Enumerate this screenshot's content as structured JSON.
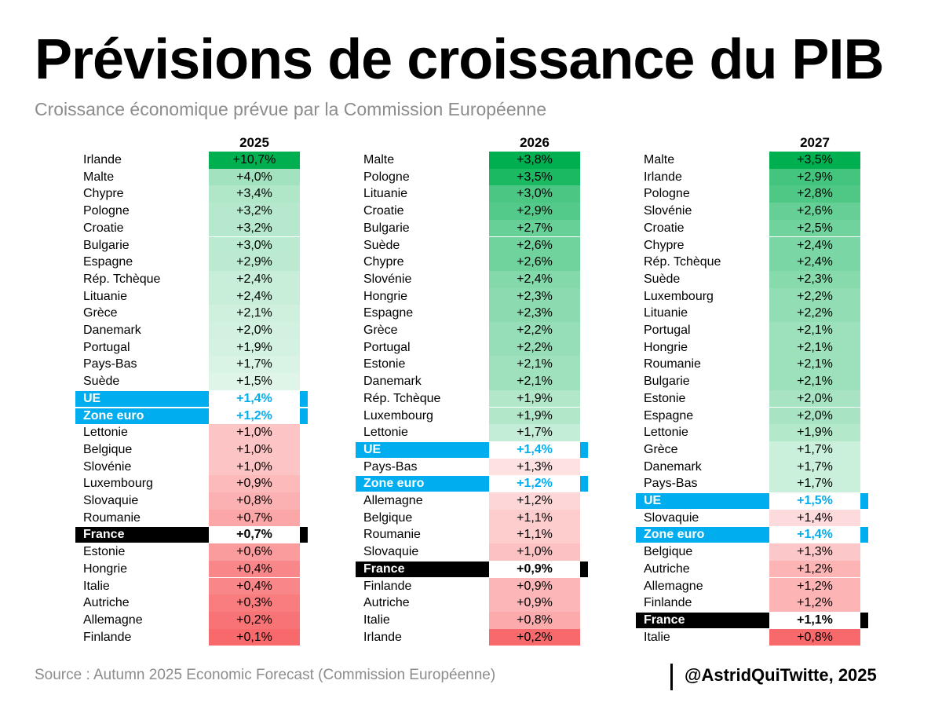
{
  "title": "Prévisions de croissance du PIB",
  "subtitle": "Croissance économique prévue par la Commission Européenne",
  "source": "Source : Autumn 2025 Economic Forecast (Commission Européenne)",
  "credit": "@AstridQuiTwitte, 2025",
  "colors": {
    "positive_max": "#00b050",
    "neutral": "#ffffff",
    "negative_max": "#f8696b",
    "ue_highlight": "#00aeef",
    "france_highlight": "#000000"
  },
  "chart_data": [
    {
      "type": "table",
      "year": "2025",
      "scale": [
        0.1,
        1.4,
        10.7
      ],
      "rows": [
        {
          "country": "Irlande",
          "label": "+10,7%",
          "value": 10.7
        },
        {
          "country": "Malte",
          "label": "+4,0%",
          "value": 4.0
        },
        {
          "country": "Chypre",
          "label": "+3,4%",
          "value": 3.4
        },
        {
          "country": "Pologne",
          "label": "+3,2%",
          "value": 3.2
        },
        {
          "country": "Croatie",
          "label": "+3,2%",
          "value": 3.2
        },
        {
          "country": "Bulgarie",
          "label": "+3,0%",
          "value": 3.0
        },
        {
          "country": "Espagne",
          "label": "+2,9%",
          "value": 2.9
        },
        {
          "country": "Rép. Tchèque",
          "label": "+2,4%",
          "value": 2.4
        },
        {
          "country": "Lituanie",
          "label": "+2,4%",
          "value": 2.4
        },
        {
          "country": "Grèce",
          "label": "+2,1%",
          "value": 2.1
        },
        {
          "country": "Danemark",
          "label": "+2,0%",
          "value": 2.0
        },
        {
          "country": "Portugal",
          "label": "+1,9%",
          "value": 1.9
        },
        {
          "country": "Pays-Bas",
          "label": "+1,7%",
          "value": 1.7
        },
        {
          "country": "Suède",
          "label": "+1,5%",
          "value": 1.5
        },
        {
          "country": "UE",
          "label": "+1,4%",
          "value": 1.4,
          "highlight": "blue"
        },
        {
          "country": "Zone euro",
          "label": "+1,2%",
          "value": 1.2,
          "highlight": "blue"
        },
        {
          "country": "Lettonie",
          "label": "+1,0%",
          "value": 1.0
        },
        {
          "country": "Belgique",
          "label": "+1,0%",
          "value": 1.0
        },
        {
          "country": "Slovénie",
          "label": "+1,0%",
          "value": 1.0
        },
        {
          "country": "Luxembourg",
          "label": "+0,9%",
          "value": 0.9
        },
        {
          "country": "Slovaquie",
          "label": "+0,8%",
          "value": 0.8
        },
        {
          "country": "Roumanie",
          "label": "+0,7%",
          "value": 0.7
        },
        {
          "country": "France",
          "label": "+0,7%",
          "value": 0.7,
          "highlight": "black"
        },
        {
          "country": "Estonie",
          "label": "+0,6%",
          "value": 0.6
        },
        {
          "country": "Hongrie",
          "label": "+0,4%",
          "value": 0.4
        },
        {
          "country": "Italie",
          "label": "+0,4%",
          "value": 0.4
        },
        {
          "country": "Autriche",
          "label": "+0,3%",
          "value": 0.3
        },
        {
          "country": "Allemagne",
          "label": "+0,2%",
          "value": 0.2
        },
        {
          "country": "Finlande",
          "label": "+0,1%",
          "value": 0.1
        }
      ]
    },
    {
      "type": "table",
      "year": "2026",
      "scale": [
        0.2,
        1.4,
        3.8
      ],
      "rows": [
        {
          "country": "Malte",
          "label": "+3,8%",
          "value": 3.8
        },
        {
          "country": "Pologne",
          "label": "+3,5%",
          "value": 3.5
        },
        {
          "country": "Lituanie",
          "label": "+3,0%",
          "value": 3.0
        },
        {
          "country": "Croatie",
          "label": "+2,9%",
          "value": 2.9
        },
        {
          "country": "Bulgarie",
          "label": "+2,7%",
          "value": 2.7
        },
        {
          "country": "Suède",
          "label": "+2,6%",
          "value": 2.6
        },
        {
          "country": "Chypre",
          "label": "+2,6%",
          "value": 2.6
        },
        {
          "country": "Slovénie",
          "label": "+2,4%",
          "value": 2.4
        },
        {
          "country": "Hongrie",
          "label": "+2,3%",
          "value": 2.3
        },
        {
          "country": "Espagne",
          "label": "+2,3%",
          "value": 2.3
        },
        {
          "country": "Grèce",
          "label": "+2,2%",
          "value": 2.2
        },
        {
          "country": "Portugal",
          "label": "+2,2%",
          "value": 2.2
        },
        {
          "country": "Estonie",
          "label": "+2,1%",
          "value": 2.1
        },
        {
          "country": "Danemark",
          "label": "+2,1%",
          "value": 2.1
        },
        {
          "country": "Rép. Tchèque",
          "label": "+1,9%",
          "value": 1.9
        },
        {
          "country": "Luxembourg",
          "label": "+1,9%",
          "value": 1.9
        },
        {
          "country": "Lettonie",
          "label": "+1,7%",
          "value": 1.7
        },
        {
          "country": "UE",
          "label": "+1,4%",
          "value": 1.4,
          "highlight": "blue"
        },
        {
          "country": "Pays-Bas",
          "label": "+1,3%",
          "value": 1.3
        },
        {
          "country": "Zone euro",
          "label": "+1,2%",
          "value": 1.2,
          "highlight": "blue"
        },
        {
          "country": "Allemagne",
          "label": "+1,2%",
          "value": 1.2
        },
        {
          "country": "Belgique",
          "label": "+1,1%",
          "value": 1.1
        },
        {
          "country": "Roumanie",
          "label": "+1,1%",
          "value": 1.1
        },
        {
          "country": "Slovaquie",
          "label": "+1,0%",
          "value": 1.0
        },
        {
          "country": "France",
          "label": "+0,9%",
          "value": 0.9,
          "highlight": "black"
        },
        {
          "country": "Finlande",
          "label": "+0,9%",
          "value": 0.9
        },
        {
          "country": "Autriche",
          "label": "+0,9%",
          "value": 0.9
        },
        {
          "country": "Italie",
          "label": "+0,8%",
          "value": 0.8
        },
        {
          "country": "Irlande",
          "label": "+0,2%",
          "value": 0.2
        }
      ]
    },
    {
      "type": "table",
      "year": "2027",
      "scale": [
        0.8,
        1.5,
        3.5
      ],
      "rows": [
        {
          "country": "Malte",
          "label": "+3,5%",
          "value": 3.5
        },
        {
          "country": "Irlande",
          "label": "+2,9%",
          "value": 2.9
        },
        {
          "country": "Pologne",
          "label": "+2,8%",
          "value": 2.8
        },
        {
          "country": "Slovénie",
          "label": "+2,6%",
          "value": 2.6
        },
        {
          "country": "Croatie",
          "label": "+2,5%",
          "value": 2.5
        },
        {
          "country": "Chypre",
          "label": "+2,4%",
          "value": 2.4
        },
        {
          "country": "Rép. Tchèque",
          "label": "+2,4%",
          "value": 2.4
        },
        {
          "country": "Suède",
          "label": "+2,3%",
          "value": 2.3
        },
        {
          "country": "Luxembourg",
          "label": "+2,2%",
          "value": 2.2
        },
        {
          "country": "Lituanie",
          "label": "+2,2%",
          "value": 2.2
        },
        {
          "country": "Portugal",
          "label": "+2,1%",
          "value": 2.1
        },
        {
          "country": "Hongrie",
          "label": "+2,1%",
          "value": 2.1
        },
        {
          "country": "Roumanie",
          "label": "+2,1%",
          "value": 2.1
        },
        {
          "country": "Bulgarie",
          "label": "+2,1%",
          "value": 2.1
        },
        {
          "country": "Estonie",
          "label": "+2,0%",
          "value": 2.0
        },
        {
          "country": "Espagne",
          "label": "+2,0%",
          "value": 2.0
        },
        {
          "country": "Lettonie",
          "label": "+1,9%",
          "value": 1.9
        },
        {
          "country": "Grèce",
          "label": "+1,7%",
          "value": 1.7
        },
        {
          "country": "Danemark",
          "label": "+1,7%",
          "value": 1.7
        },
        {
          "country": "Pays-Bas",
          "label": "+1,7%",
          "value": 1.7
        },
        {
          "country": "UE",
          "label": "+1,5%",
          "value": 1.5,
          "highlight": "blue"
        },
        {
          "country": "Slovaquie",
          "label": "+1,4%",
          "value": 1.4
        },
        {
          "country": "Zone euro",
          "label": "+1,4%",
          "value": 1.4,
          "highlight": "blue"
        },
        {
          "country": "Belgique",
          "label": "+1,3%",
          "value": 1.3
        },
        {
          "country": "Autriche",
          "label": "+1,2%",
          "value": 1.2
        },
        {
          "country": "Allemagne",
          "label": "+1,2%",
          "value": 1.2
        },
        {
          "country": "Finlande",
          "label": "+1,2%",
          "value": 1.2
        },
        {
          "country": "France",
          "label": "+1,1%",
          "value": 1.1,
          "highlight": "black"
        },
        {
          "country": "Italie",
          "label": "+0,8%",
          "value": 0.8
        }
      ]
    }
  ]
}
